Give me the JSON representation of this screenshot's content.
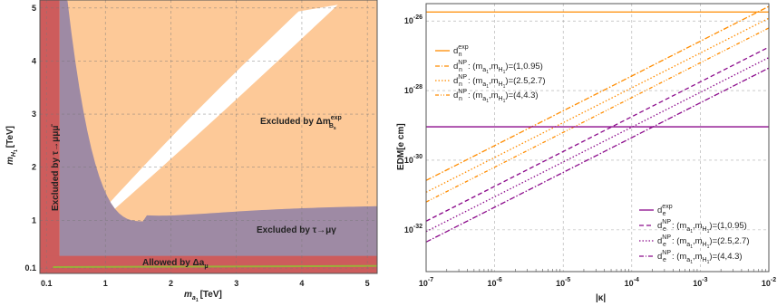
{
  "chart_data": [
    {
      "type": "area",
      "xlabel": "m_{a_1} [TeV]",
      "ylabel": "m_{H_1} [TeV]",
      "xlim": [
        0,
        5.15
      ],
      "ylim": [
        0,
        5.15
      ],
      "x_ticks": [
        "0.1",
        "1",
        "2",
        "3",
        "4",
        "5"
      ],
      "y_ticks": [
        "0.1",
        "1",
        "2",
        "3",
        "4",
        "5"
      ],
      "grid": true,
      "regions": [
        {
          "label": "Excluded by τ→μμ̄μ",
          "color": "#cd5c5c",
          "x_max": 0.3
        },
        {
          "label": "Allowed by Δa_μ",
          "color": "#cd5c5c",
          "y_range": [
            0.1,
            0.33
          ]
        },
        {
          "label": "Excluded by Δm_{B_s}^{exp}",
          "color": "#fdc998"
        },
        {
          "label": "Excluded by τ→μγ",
          "color": "#9e8aa4"
        }
      ],
      "labels": {
        "left_vertical": "Excluded by τ→μμμ̄",
        "bs": "Excluded by Δm",
        "bs_sup": "exp",
        "bs_sub": "B",
        "bs_subsub": "s",
        "mueg": "Excluded by τ→μγ",
        "allowed": "Allowed by Δa",
        "allowed_sub": "μ",
        "xlabel_m": "m",
        "xlabel_sub": "a",
        "xlabel_subsub": "1",
        "xlabel_unit": "[TeV]",
        "ylabel_m": "m",
        "ylabel_sub": "H",
        "ylabel_subsub": "1",
        "ylabel_unit": "[TeV]"
      }
    },
    {
      "type": "line",
      "xlabel": "|κ|",
      "ylabel": "EDM[e cm]",
      "x_log10_range": [
        -7,
        -2
      ],
      "y_log10_range": [
        -33.2,
        -25.5
      ],
      "x_ticks": [
        "10",
        "10",
        "10",
        "10",
        "10",
        "10"
      ],
      "x_tick_exponents": [
        "-7",
        "-6",
        "-5",
        "-4",
        "-3",
        "-2"
      ],
      "y_ticks": [
        "10",
        "10",
        "10",
        "10"
      ],
      "y_tick_exponents": [
        "-26",
        "-28",
        "-30",
        "-32"
      ],
      "grid": true,
      "series": [
        {
          "name": "d_n^exp",
          "color": "#ff8c00",
          "dash": "solid",
          "points": [
            [
              -7,
              -25.74
            ],
            [
              -2,
              -25.74
            ]
          ]
        },
        {
          "name": "d_n^NP:(m_a1,m_H1)=(1,0.95)",
          "color": "#ff8c00",
          "dash": "dashdot",
          "points": [
            [
              -7,
              -30.58
            ],
            [
              -2,
              -25.58
            ]
          ]
        },
        {
          "name": "d_n^NP:(m_a1,m_H1)=(2.5,2.7)",
          "color": "#ff8c00",
          "dash": "dotted",
          "points": [
            [
              -7,
              -30.92
            ],
            [
              -2,
              -25.92
            ]
          ]
        },
        {
          "name": "d_n^NP:(m_a1,m_H1)=(4,4.3)",
          "color": "#ff8c00",
          "dash": "dashdot2",
          "points": [
            [
              -7,
              -31.2
            ],
            [
              -2,
              -26.2
            ]
          ]
        },
        {
          "name": "d_e^exp",
          "color": "#8b0a8b",
          "dash": "solid",
          "points": [
            [
              -7,
              -29.04
            ],
            [
              -2,
              -29.04
            ]
          ]
        },
        {
          "name": "d_e^NP:(m_a1,m_H1)=(1,0.95)",
          "color": "#8b0a8b",
          "dash": "dashed",
          "points": [
            [
              -7,
              -31.75
            ],
            [
              -2,
              -26.75
            ]
          ]
        },
        {
          "name": "d_e^NP:(m_a1,m_H1)=(2.5,2.7)",
          "color": "#8b0a8b",
          "dash": "dotted",
          "points": [
            [
              -7,
              -32.05
            ],
            [
              -2,
              -27.05
            ]
          ]
        },
        {
          "name": "d_e^NP:(m_a1,m_H1)=(4,4.3)",
          "color": "#8b0a8b",
          "dash": "dashdot",
          "points": [
            [
              -7,
              -32.35
            ],
            [
              -2,
              -27.35
            ]
          ]
        }
      ],
      "legend_position": "top-left and bottom-right",
      "legend_text": {
        "dn_exp": "d",
        "dn_exp_sup": "exp",
        "dn_exp_sub": "n",
        "de_exp": "d",
        "de_exp_sup": "exp",
        "de_exp_sub": "e",
        "np_sup": "NP",
        "np_mid": ": (m",
        "np_a": "a",
        "np_one": "1",
        "np_comma": ",m",
        "np_h": "H",
        "entries_n": [
          "=(1,0.95)",
          "=(2.5,2.7)",
          "=(4,4.3)"
        ],
        "entries_e": [
          "=(1,0.95)",
          "=(2.5,2.7)",
          "=(4,4.3)"
        ]
      }
    }
  ]
}
